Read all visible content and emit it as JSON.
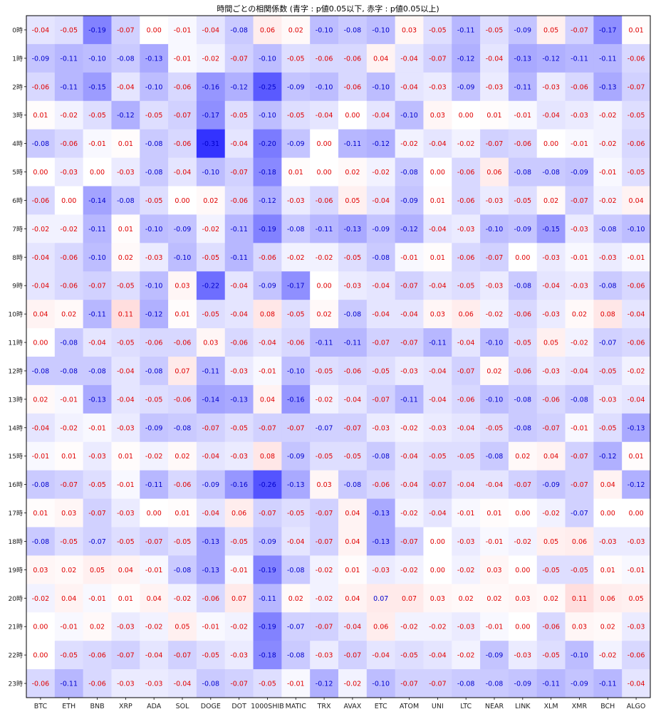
{
  "chart_data": {
    "type": "heatmap",
    "title": "時間ごとの相関係数 (青字 : p値0.05以下, 赤字 : p値0.05以上)",
    "x_labels": [
      "BTC",
      "ETH",
      "BNB",
      "XRP",
      "ADA",
      "SOL",
      "DOGE",
      "DOT",
      "1000SHIB",
      "MATIC",
      "TRX",
      "AVAX",
      "ETC",
      "ATOM",
      "UNI",
      "LTC",
      "NEAR",
      "LINK",
      "XLM",
      "XMR",
      "BCH",
      "ALGO"
    ],
    "y_labels": [
      "0時",
      "1時",
      "2時",
      "3時",
      "4時",
      "5時",
      "6時",
      "7時",
      "8時",
      "9時",
      "10時",
      "11時",
      "12時",
      "13時",
      "14時",
      "15時",
      "16時",
      "17時",
      "18時",
      "19時",
      "20時",
      "21時",
      "22時",
      "23時"
    ],
    "values": [
      [
        -0.04,
        -0.05,
        -0.19,
        -0.07,
        -0.0,
        -0.01,
        -0.04,
        -0.08,
        0.06,
        0.02,
        -0.1,
        -0.08,
        -0.1,
        0.03,
        -0.05,
        -0.11,
        -0.05,
        -0.09,
        0.05,
        -0.07,
        -0.17,
        0.01
      ],
      [
        -0.09,
        -0.11,
        -0.1,
        -0.08,
        -0.13,
        -0.01,
        -0.02,
        -0.07,
        -0.1,
        -0.05,
        -0.06,
        -0.06,
        0.04,
        -0.04,
        -0.07,
        -0.12,
        -0.04,
        -0.13,
        -0.12,
        -0.11,
        -0.11,
        -0.06
      ],
      [
        -0.06,
        -0.11,
        -0.15,
        -0.04,
        -0.1,
        -0.06,
        -0.16,
        -0.12,
        -0.25,
        -0.09,
        -0.1,
        -0.06,
        -0.1,
        -0.04,
        -0.03,
        -0.09,
        -0.03,
        -0.11,
        -0.03,
        -0.06,
        -0.13,
        -0.07
      ],
      [
        0.01,
        -0.02,
        -0.05,
        -0.12,
        -0.05,
        -0.07,
        -0.17,
        -0.05,
        -0.1,
        -0.05,
        -0.04,
        0.0,
        -0.04,
        -0.1,
        0.03,
        0.0,
        0.01,
        -0.01,
        -0.04,
        -0.03,
        -0.02,
        -0.05
      ],
      [
        -0.08,
        -0.06,
        -0.01,
        0.01,
        -0.08,
        -0.06,
        -0.31,
        -0.04,
        -0.2,
        -0.09,
        -0.0,
        -0.11,
        -0.12,
        -0.02,
        -0.04,
        -0.02,
        -0.07,
        -0.06,
        -0.0,
        -0.01,
        -0.02,
        -0.06
      ],
      [
        -0.0,
        -0.03,
        -0.0,
        -0.03,
        -0.08,
        -0.04,
        -0.1,
        -0.07,
        -0.18,
        0.01,
        0.0,
        0.02,
        -0.02,
        -0.08,
        -0.0,
        -0.06,
        0.06,
        -0.08,
        -0.08,
        -0.09,
        -0.01,
        -0.05
      ],
      [
        -0.06,
        -0.0,
        -0.14,
        -0.08,
        -0.05,
        -0.0,
        0.02,
        -0.06,
        -0.12,
        -0.03,
        -0.06,
        0.05,
        -0.04,
        -0.09,
        0.01,
        -0.06,
        -0.03,
        -0.05,
        0.02,
        -0.07,
        -0.02,
        0.04
      ],
      [
        -0.02,
        -0.02,
        -0.11,
        0.01,
        -0.1,
        -0.09,
        -0.02,
        -0.11,
        -0.19,
        -0.08,
        -0.11,
        -0.13,
        -0.09,
        -0.12,
        -0.04,
        -0.03,
        -0.1,
        -0.09,
        -0.15,
        -0.03,
        -0.08,
        -0.1
      ],
      [
        -0.04,
        -0.06,
        -0.1,
        0.02,
        -0.03,
        -0.1,
        -0.05,
        -0.11,
        -0.06,
        -0.02,
        -0.02,
        -0.05,
        -0.08,
        -0.01,
        0.01,
        -0.06,
        -0.07,
        -0.0,
        -0.03,
        -0.01,
        -0.03,
        -0.01
      ],
      [
        -0.04,
        -0.06,
        -0.07,
        -0.05,
        -0.1,
        0.03,
        -0.22,
        -0.04,
        -0.09,
        -0.17,
        0.0,
        -0.03,
        -0.04,
        -0.07,
        -0.04,
        -0.05,
        -0.03,
        -0.08,
        -0.04,
        -0.03,
        -0.08,
        -0.06
      ],
      [
        0.04,
        0.02,
        -0.11,
        0.11,
        -0.12,
        0.01,
        -0.05,
        -0.04,
        0.08,
        -0.05,
        0.02,
        -0.08,
        -0.04,
        -0.04,
        0.03,
        0.06,
        -0.02,
        -0.06,
        -0.03,
        0.02,
        0.08,
        -0.04
      ],
      [
        0.0,
        -0.08,
        -0.04,
        -0.05,
        -0.06,
        -0.06,
        0.03,
        -0.06,
        -0.04,
        -0.06,
        -0.11,
        -0.11,
        -0.07,
        -0.07,
        -0.11,
        -0.04,
        -0.1,
        -0.05,
        0.05,
        -0.02,
        -0.07,
        -0.06
      ],
      [
        -0.08,
        -0.08,
        -0.08,
        -0.04,
        -0.08,
        0.07,
        -0.11,
        -0.03,
        -0.01,
        -0.1,
        -0.05,
        -0.06,
        -0.05,
        -0.03,
        -0.04,
        -0.07,
        0.02,
        -0.06,
        -0.03,
        -0.04,
        -0.05,
        -0.02
      ],
      [
        0.02,
        -0.01,
        -0.13,
        -0.04,
        -0.05,
        -0.06,
        -0.14,
        -0.13,
        0.04,
        -0.16,
        -0.02,
        -0.04,
        -0.07,
        -0.11,
        -0.04,
        -0.06,
        -0.1,
        -0.08,
        -0.06,
        -0.08,
        -0.03,
        -0.04
      ],
      [
        -0.04,
        -0.02,
        -0.01,
        -0.03,
        -0.09,
        -0.08,
        -0.07,
        -0.05,
        -0.07,
        -0.07,
        -0.07,
        -0.07,
        -0.03,
        -0.02,
        -0.03,
        -0.04,
        -0.05,
        -0.08,
        -0.07,
        -0.01,
        -0.05,
        -0.13
      ],
      [
        -0.01,
        0.01,
        -0.03,
        0.01,
        -0.02,
        0.02,
        -0.04,
        -0.03,
        0.08,
        -0.09,
        -0.05,
        -0.05,
        -0.08,
        -0.04,
        -0.05,
        -0.05,
        -0.08,
        0.02,
        0.04,
        -0.07,
        -0.12,
        0.01
      ],
      [
        -0.08,
        -0.07,
        -0.05,
        -0.01,
        -0.11,
        -0.06,
        -0.09,
        -0.16,
        -0.26,
        -0.13,
        0.03,
        -0.08,
        -0.06,
        -0.04,
        -0.07,
        -0.04,
        -0.04,
        -0.07,
        -0.09,
        -0.07,
        0.04,
        -0.12
      ],
      [
        0.01,
        0.03,
        -0.07,
        -0.03,
        -0.0,
        0.01,
        -0.04,
        0.06,
        -0.07,
        -0.05,
        -0.07,
        0.04,
        -0.13,
        -0.02,
        -0.04,
        -0.01,
        0.01,
        -0.0,
        -0.02,
        -0.07,
        -0.0,
        0.0
      ],
      [
        -0.08,
        -0.05,
        -0.07,
        -0.05,
        -0.07,
        -0.05,
        -0.13,
        -0.05,
        -0.09,
        -0.04,
        -0.07,
        0.04,
        -0.13,
        -0.07,
        -0.0,
        -0.03,
        -0.01,
        -0.02,
        0.05,
        0.06,
        -0.03,
        -0.03
      ],
      [
        0.03,
        0.02,
        0.05,
        0.04,
        -0.01,
        -0.08,
        -0.13,
        -0.01,
        -0.19,
        -0.08,
        -0.02,
        0.01,
        -0.03,
        -0.02,
        -0.0,
        -0.02,
        0.03,
        -0.0,
        -0.05,
        -0.05,
        0.01,
        -0.01
      ],
      [
        -0.02,
        0.04,
        -0.01,
        0.01,
        0.04,
        -0.02,
        -0.06,
        0.07,
        -0.11,
        0.02,
        -0.02,
        0.04,
        0.07,
        0.07,
        0.03,
        0.02,
        0.02,
        0.03,
        0.02,
        0.11,
        0.06,
        0.05
      ],
      [
        0.0,
        -0.01,
        0.02,
        -0.03,
        -0.02,
        0.05,
        -0.01,
        -0.02,
        -0.19,
        -0.07,
        -0.07,
        -0.04,
        0.06,
        -0.02,
        -0.02,
        -0.03,
        -0.01,
        0.0,
        -0.06,
        0.03,
        0.02,
        -0.03
      ],
      [
        -0.0,
        -0.05,
        -0.06,
        -0.07,
        -0.04,
        -0.07,
        -0.05,
        -0.03,
        -0.18,
        -0.08,
        -0.03,
        -0.07,
        -0.04,
        -0.05,
        -0.04,
        -0.02,
        -0.09,
        -0.03,
        -0.05,
        -0.1,
        -0.02,
        -0.06
      ],
      [
        -0.06,
        -0.11,
        -0.06,
        -0.03,
        -0.03,
        -0.04,
        -0.08,
        -0.07,
        -0.05,
        -0.01,
        -0.12,
        -0.02,
        -0.1,
        -0.07,
        -0.07,
        -0.08,
        -0.08,
        -0.09,
        -0.11,
        -0.09,
        -0.11,
        -0.04
      ]
    ],
    "significant": [
      [
        0,
        0,
        1,
        0,
        0,
        0,
        0,
        1,
        0,
        0,
        1,
        1,
        1,
        0,
        0,
        1,
        0,
        1,
        0,
        0,
        1,
        0
      ],
      [
        1,
        1,
        1,
        1,
        1,
        0,
        0,
        0,
        1,
        0,
        0,
        0,
        0,
        0,
        0,
        1,
        0,
        1,
        1,
        1,
        1,
        0
      ],
      [
        0,
        1,
        1,
        0,
        1,
        0,
        1,
        1,
        1,
        1,
        1,
        0,
        1,
        0,
        0,
        1,
        0,
        1,
        0,
        0,
        1,
        0
      ],
      [
        0,
        0,
        0,
        1,
        0,
        0,
        1,
        0,
        1,
        0,
        0,
        0,
        0,
        1,
        0,
        0,
        0,
        0,
        0,
        0,
        0,
        0
      ],
      [
        1,
        0,
        0,
        0,
        1,
        0,
        1,
        0,
        1,
        1,
        0,
        1,
        1,
        0,
        0,
        0,
        0,
        0,
        0,
        0,
        0,
        0
      ],
      [
        0,
        0,
        0,
        0,
        1,
        0,
        1,
        0,
        1,
        0,
        0,
        0,
        0,
        1,
        0,
        0,
        0,
        1,
        1,
        1,
        0,
        0
      ],
      [
        0,
        0,
        1,
        1,
        0,
        0,
        0,
        0,
        1,
        0,
        0,
        0,
        0,
        1,
        0,
        0,
        0,
        0,
        0,
        0,
        0,
        0
      ],
      [
        0,
        0,
        1,
        0,
        1,
        1,
        0,
        1,
        1,
        1,
        1,
        1,
        1,
        1,
        0,
        0,
        1,
        1,
        1,
        0,
        1,
        1
      ],
      [
        0,
        0,
        1,
        0,
        0,
        1,
        0,
        1,
        0,
        0,
        0,
        0,
        1,
        0,
        0,
        0,
        0,
        0,
        0,
        0,
        0,
        0
      ],
      [
        0,
        0,
        0,
        0,
        1,
        0,
        1,
        0,
        1,
        1,
        0,
        0,
        0,
        0,
        0,
        0,
        0,
        1,
        0,
        0,
        1,
        0
      ],
      [
        0,
        0,
        1,
        0,
        1,
        0,
        0,
        0,
        0,
        0,
        0,
        1,
        0,
        0,
        0,
        0,
        0,
        0,
        0,
        0,
        0,
        0
      ],
      [
        0,
        1,
        0,
        0,
        0,
        0,
        0,
        0,
        0,
        0,
        1,
        1,
        0,
        0,
        1,
        0,
        1,
        0,
        0,
        0,
        1,
        0
      ],
      [
        1,
        1,
        1,
        0,
        1,
        0,
        1,
        0,
        0,
        1,
        0,
        0,
        0,
        0,
        0,
        0,
        0,
        0,
        0,
        0,
        0,
        0
      ],
      [
        0,
        0,
        1,
        0,
        0,
        0,
        1,
        1,
        0,
        1,
        0,
        0,
        0,
        1,
        0,
        0,
        1,
        1,
        0,
        1,
        0,
        0
      ],
      [
        0,
        0,
        0,
        0,
        1,
        1,
        0,
        0,
        0,
        0,
        1,
        0,
        0,
        0,
        0,
        0,
        0,
        1,
        0,
        0,
        0,
        1
      ],
      [
        0,
        0,
        0,
        0,
        0,
        0,
        0,
        0,
        0,
        1,
        0,
        0,
        1,
        0,
        0,
        0,
        1,
        0,
        0,
        0,
        1,
        0
      ],
      [
        1,
        0,
        0,
        0,
        1,
        0,
        1,
        1,
        1,
        1,
        0,
        1,
        0,
        0,
        0,
        0,
        0,
        0,
        1,
        0,
        0,
        1
      ],
      [
        0,
        0,
        0,
        0,
        0,
        0,
        0,
        0,
        0,
        0,
        0,
        0,
        1,
        0,
        0,
        0,
        0,
        0,
        0,
        1,
        0,
        0
      ],
      [
        1,
        0,
        1,
        0,
        0,
        0,
        1,
        0,
        1,
        0,
        0,
        0,
        1,
        0,
        0,
        0,
        0,
        0,
        0,
        0,
        0,
        0
      ],
      [
        0,
        0,
        0,
        0,
        0,
        1,
        1,
        0,
        1,
        1,
        0,
        0,
        0,
        0,
        0,
        0,
        0,
        0,
        0,
        0,
        0,
        0
      ],
      [
        0,
        0,
        0,
        0,
        0,
        0,
        0,
        0,
        1,
        0,
        0,
        0,
        1,
        0,
        0,
        0,
        0,
        0,
        0,
        0,
        0,
        0
      ],
      [
        0,
        0,
        0,
        0,
        0,
        0,
        0,
        0,
        1,
        1,
        0,
        0,
        0,
        0,
        0,
        0,
        0,
        0,
        0,
        0,
        0,
        0
      ],
      [
        0,
        0,
        0,
        0,
        0,
        0,
        0,
        0,
        1,
        1,
        0,
        0,
        0,
        0,
        0,
        0,
        1,
        0,
        0,
        1,
        0,
        0
      ],
      [
        0,
        1,
        0,
        0,
        0,
        0,
        1,
        0,
        0,
        0,
        1,
        0,
        1,
        0,
        0,
        1,
        1,
        1,
        1,
        1,
        1,
        0
      ]
    ],
    "colors": {
      "significant_text": "#0000cc",
      "insignificant_text": "#e00000",
      "negative_fill": "#0000ff",
      "positive_fill": "#ff0000"
    },
    "color_range": [
      -0.31,
      0.31
    ],
    "grid": false
  }
}
